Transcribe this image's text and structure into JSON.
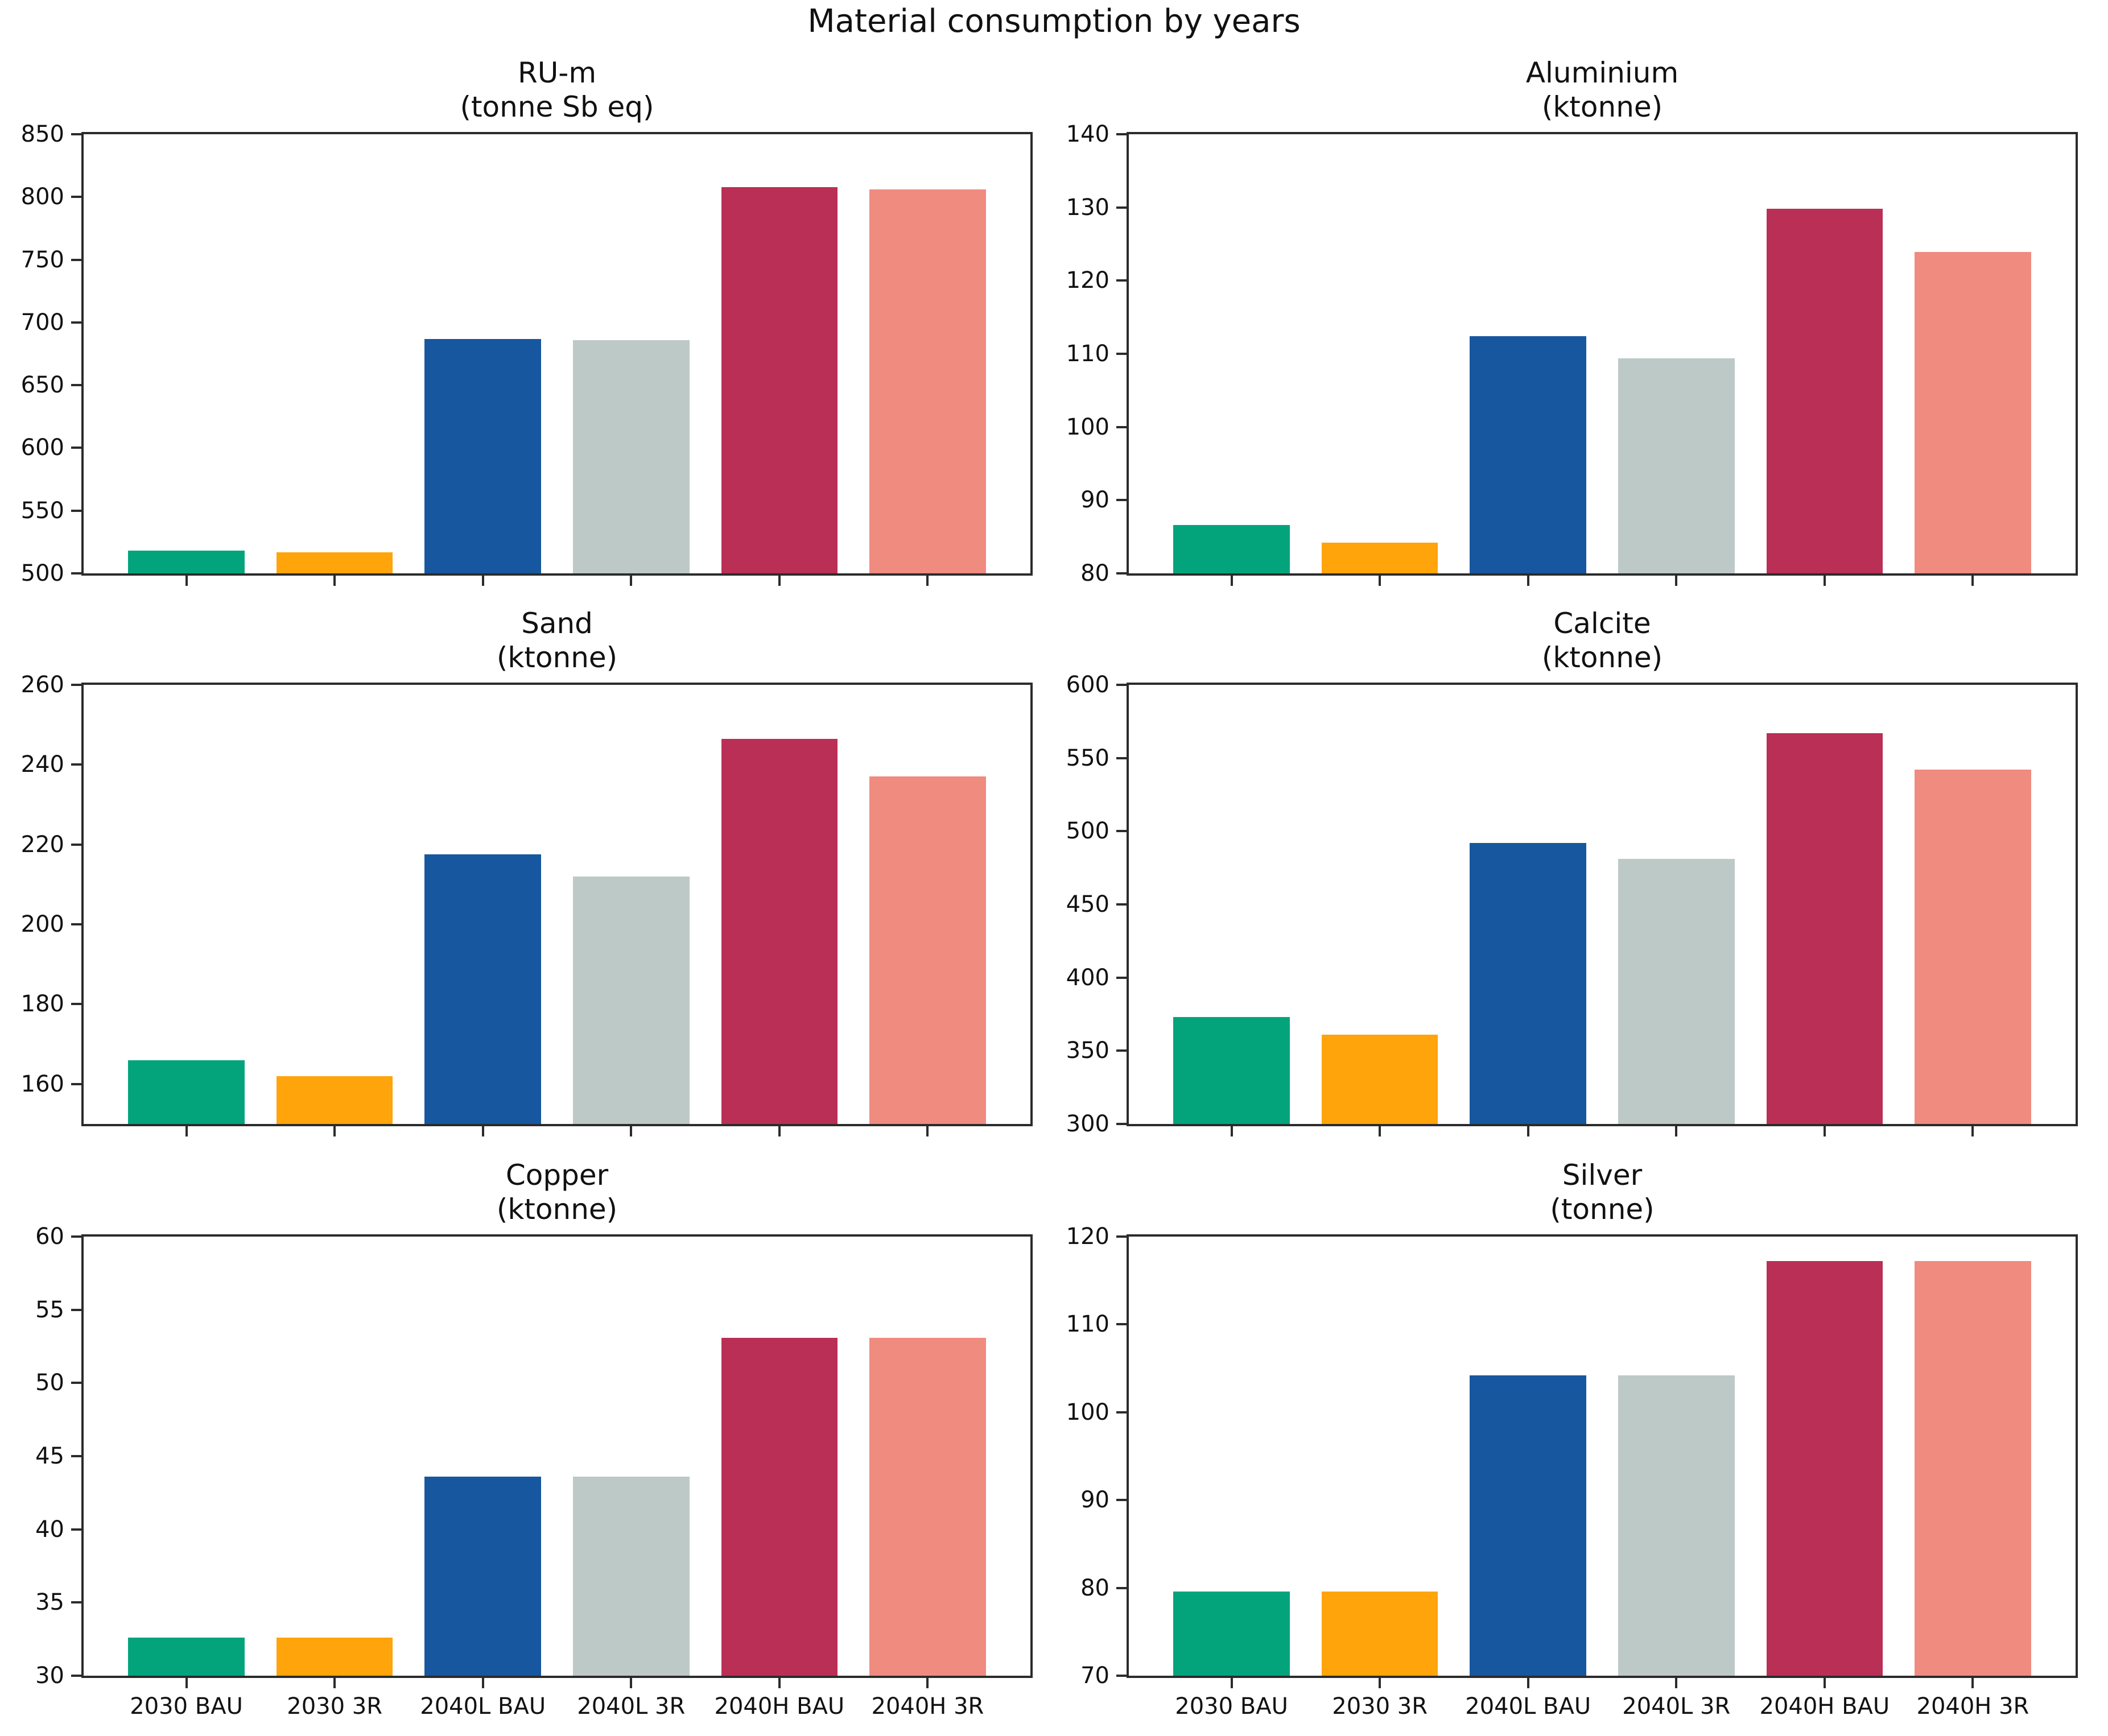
{
  "figure": {
    "title": "Material consumption by years"
  },
  "chart_data": {
    "type": "bar",
    "title": "Material consumption by years",
    "categories": [
      "2030 BAU",
      "2030 3R",
      "2040L BAU",
      "2040L 3R",
      "2040H BAU",
      "2040H 3R"
    ],
    "bar_colors": [
      "#03a47c",
      "#ffa40a",
      "#17579f",
      "#bdc9c7",
      "#ba2f56",
      "#f08b80"
    ],
    "layout": {
      "rows": 3,
      "cols": 2,
      "grid": false,
      "legend": false,
      "x_tick_labels": "bottom-row-only"
    },
    "subplots": [
      {
        "name": "RU-m",
        "unit": "(tonne Sb eq)",
        "ylim": [
          500,
          850
        ],
        "yticks": [
          500,
          550,
          600,
          650,
          700,
          750,
          800,
          850
        ],
        "values": [
          518,
          517,
          687,
          686,
          808,
          806
        ]
      },
      {
        "name": "Aluminium",
        "unit": "(ktonne)",
        "ylim": [
          80,
          140
        ],
        "yticks": [
          80,
          90,
          100,
          110,
          120,
          130,
          140
        ],
        "values": [
          86.6,
          84.2,
          112.4,
          109.4,
          129.8,
          123.9
        ]
      },
      {
        "name": "Sand",
        "unit": "(ktonne)",
        "ylim": [
          150,
          260
        ],
        "yticks": [
          160,
          180,
          200,
          220,
          240,
          260
        ],
        "values": [
          166,
          162,
          217.5,
          212,
          246.5,
          237
        ]
      },
      {
        "name": "Calcite",
        "unit": "(ktonne)",
        "ylim": [
          300,
          600
        ],
        "yticks": [
          300,
          350,
          400,
          450,
          500,
          550,
          600
        ],
        "values": [
          373,
          361,
          492,
          481,
          567,
          542
        ]
      },
      {
        "name": "Copper",
        "unit": "(ktonne)",
        "ylim": [
          30,
          60
        ],
        "yticks": [
          30,
          35,
          40,
          45,
          50,
          55,
          60
        ],
        "values": [
          32.6,
          32.6,
          43.6,
          43.6,
          53.1,
          53.1
        ]
      },
      {
        "name": "Silver",
        "unit": "(tonne)",
        "ylim": [
          70,
          120
        ],
        "yticks": [
          70,
          80,
          90,
          100,
          110,
          120
        ],
        "values": [
          79.6,
          79.6,
          104.2,
          104.2,
          117.2,
          117.2
        ]
      }
    ]
  }
}
